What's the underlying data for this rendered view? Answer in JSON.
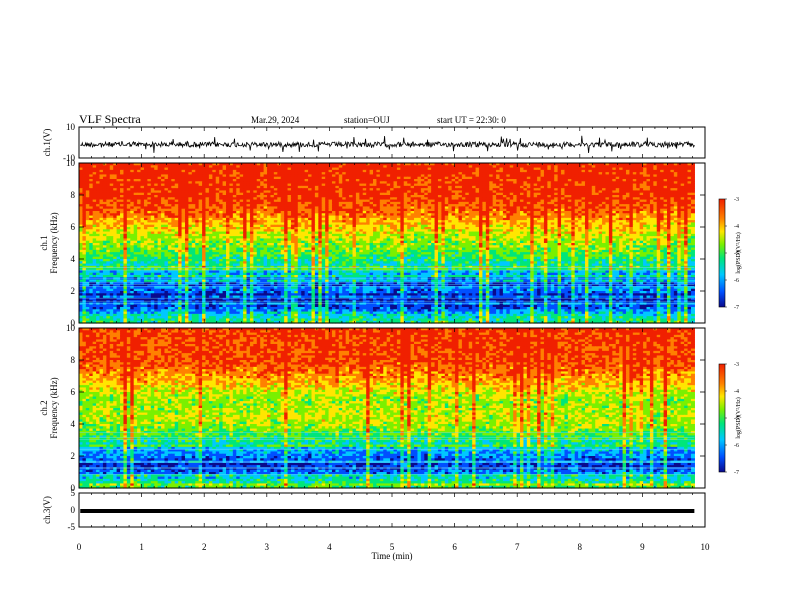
{
  "header": {
    "title": "VLF Spectra",
    "date": "Mar.29, 2024",
    "station": "station=OUJ",
    "start": "start UT =  22:30: 0"
  },
  "colors": {
    "spectrum_scale": [
      "#0a0a8c",
      "#0050ff",
      "#00c8ff",
      "#00e67a",
      "#7af000",
      "#ffe600",
      "#ff8000",
      "#f02000"
    ]
  },
  "chart_data": [
    {
      "type": "line",
      "panel": "waveform-ch1",
      "ylabel": "ch.1(V)",
      "ylim": [
        -10,
        10
      ],
      "yticks": [
        "10",
        "-10"
      ],
      "xlim": [
        0,
        10
      ],
      "approx_level": 0,
      "color": "#000000"
    },
    {
      "type": "heatmap",
      "panel": "spectrogram-ch1",
      "ylabel": "ch.1\nFrequency (kHz)",
      "ylim": [
        0,
        10
      ],
      "yticks": [
        "0",
        "2",
        "4",
        "6",
        "8",
        "10"
      ],
      "xlim": [
        0,
        10
      ],
      "data_extent_min": 9.83,
      "colorbar": {
        "label": "log(PSD)(V²/Hz)",
        "range": [
          -7,
          -3
        ],
        "ticks": [
          "-3",
          "-4",
          "-5",
          "-6",
          "-7"
        ]
      },
      "frequency_profile": [
        {
          "kHz": 0.0,
          "logPSD": -5.2
        },
        {
          "kHz": 0.5,
          "logPSD": -5.6
        },
        {
          "kHz": 1.0,
          "logPSD": -6.4
        },
        {
          "kHz": 1.5,
          "logPSD": -6.7
        },
        {
          "kHz": 2.0,
          "logPSD": -6.7
        },
        {
          "kHz": 2.5,
          "logPSD": -6.3
        },
        {
          "kHz": 3.0,
          "logPSD": -5.9
        },
        {
          "kHz": 3.5,
          "logPSD": -5.5
        },
        {
          "kHz": 4.0,
          "logPSD": -5.2
        },
        {
          "kHz": 4.5,
          "logPSD": -4.9
        },
        {
          "kHz": 5.0,
          "logPSD": -4.7
        },
        {
          "kHz": 5.5,
          "logPSD": -4.5
        },
        {
          "kHz": 6.0,
          "logPSD": -4.2
        },
        {
          "kHz": 6.5,
          "logPSD": -3.9
        },
        {
          "kHz": 7.0,
          "logPSD": -3.6
        },
        {
          "kHz": 8.0,
          "logPSD": -3.3
        },
        {
          "kHz": 10.0,
          "logPSD": -3.2
        }
      ]
    },
    {
      "type": "heatmap",
      "panel": "spectrogram-ch2",
      "ylabel": "ch.2\nFrequency (kHz)",
      "ylim": [
        0,
        10
      ],
      "yticks": [
        "0",
        "2",
        "4",
        "6",
        "8",
        "10"
      ],
      "xlim": [
        0,
        10
      ],
      "data_extent_min": 9.83,
      "colorbar": {
        "label": "log(PSD)(V²/Hz)",
        "range": [
          -7,
          -3
        ],
        "ticks": [
          "-3",
          "-4",
          "-5",
          "-6",
          "-7"
        ]
      },
      "frequency_profile": [
        {
          "kHz": 0.0,
          "logPSD": -5.0
        },
        {
          "kHz": 0.5,
          "logPSD": -5.4
        },
        {
          "kHz": 1.0,
          "logPSD": -6.2
        },
        {
          "kHz": 1.5,
          "logPSD": -6.5
        },
        {
          "kHz": 2.0,
          "logPSD": -6.1
        },
        {
          "kHz": 2.5,
          "logPSD": -5.7
        },
        {
          "kHz": 3.0,
          "logPSD": -5.2
        },
        {
          "kHz": 3.5,
          "logPSD": -4.9
        },
        {
          "kHz": 4.0,
          "logPSD": -4.6
        },
        {
          "kHz": 4.5,
          "logPSD": -4.5
        },
        {
          "kHz": 5.0,
          "logPSD": -4.6
        },
        {
          "kHz": 5.5,
          "logPSD": -4.7
        },
        {
          "kHz": 6.0,
          "logPSD": -4.4
        },
        {
          "kHz": 7.0,
          "logPSD": -3.8
        },
        {
          "kHz": 8.0,
          "logPSD": -3.4
        },
        {
          "kHz": 10.0,
          "logPSD": -3.3
        }
      ]
    },
    {
      "type": "line",
      "panel": "waveform-ch3",
      "ylabel": "ch.3(V)",
      "ylim": [
        -5,
        5
      ],
      "yticks": [
        "5",
        "0",
        "-5"
      ],
      "xlim": [
        0,
        10
      ],
      "approx_level": 0,
      "color": "#000000",
      "xlabel": "Time (min)",
      "xticks": [
        "0",
        "1",
        "2",
        "3",
        "4",
        "5",
        "6",
        "7",
        "8",
        "9",
        "10"
      ]
    }
  ]
}
